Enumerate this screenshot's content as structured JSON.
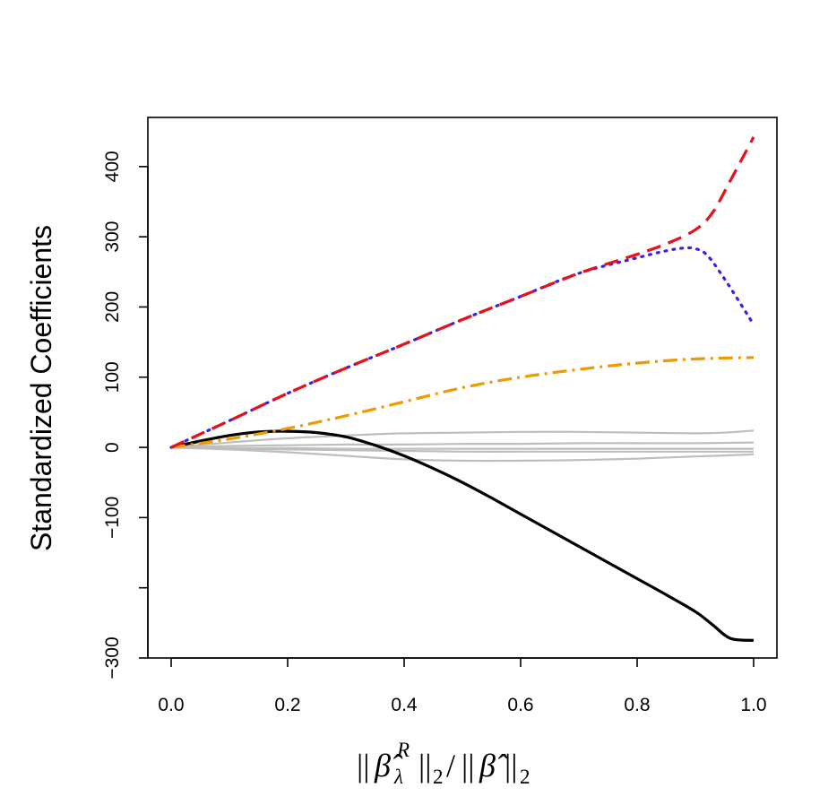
{
  "chart_data": {
    "type": "line",
    "ylabel": "Standardized Coefficients",
    "xlabel": {
      "norm_open": "||",
      "beta_hat": "β̂",
      "superscript": "R",
      "subscript": "λ",
      "norm_close": "||",
      "norm_sub": "2",
      "slash": "/"
    },
    "xlim": [
      -0.04,
      1.04
    ],
    "ylim": [
      -300,
      470
    ],
    "x_ticks": [
      {
        "value": 0.0,
        "label": "0.0"
      },
      {
        "value": 0.2,
        "label": "0.2"
      },
      {
        "value": 0.4,
        "label": "0.4"
      },
      {
        "value": 0.6,
        "label": "0.6"
      },
      {
        "value": 0.8,
        "label": "0.8"
      },
      {
        "value": 1.0,
        "label": "1.0"
      }
    ],
    "y_ticks": [
      {
        "value": -300,
        "label": "−300"
      },
      {
        "value": -200,
        "label": ""
      },
      {
        "value": -100,
        "label": "−100"
      },
      {
        "value": 0,
        "label": "0"
      },
      {
        "value": 100,
        "label": "100"
      },
      {
        "value": 200,
        "label": "200"
      },
      {
        "value": 300,
        "label": "300"
      },
      {
        "value": 400,
        "label": "400"
      }
    ],
    "grid": false,
    "series": [
      {
        "color": "#bebebe",
        "dash": "",
        "width": 2.2,
        "x": [
          0.0,
          0.1,
          0.2,
          0.3,
          0.4,
          0.5,
          0.6,
          0.7,
          0.8,
          0.9,
          0.95,
          1.0
        ],
        "y": [
          0,
          7,
          13,
          17,
          20,
          21,
          22,
          22,
          21,
          20,
          21,
          24
        ]
      },
      {
        "color": "#bebebe",
        "dash": "",
        "width": 2.2,
        "x": [
          0.0,
          0.1,
          0.2,
          0.3,
          0.4,
          0.5,
          0.6,
          0.7,
          0.8,
          0.9,
          1.0
        ],
        "y": [
          0,
          2,
          3,
          4,
          4,
          5,
          5,
          6,
          6,
          6,
          7
        ]
      },
      {
        "color": "#bebebe",
        "dash": "",
        "width": 2.2,
        "x": [
          0.0,
          0.1,
          0.2,
          0.3,
          0.4,
          0.5,
          0.6,
          0.7,
          0.8,
          0.9,
          1.0
        ],
        "y": [
          0,
          -1,
          -1,
          -2,
          -2,
          -2,
          -2,
          -2,
          -2,
          -2,
          -2
        ]
      },
      {
        "color": "#bebebe",
        "dash": "",
        "width": 2.2,
        "x": [
          0.0,
          0.1,
          0.2,
          0.3,
          0.4,
          0.5,
          0.6,
          0.7,
          0.8,
          0.9,
          1.0
        ],
        "y": [
          0,
          -2,
          -3,
          -4,
          -5,
          -6,
          -6,
          -6,
          -6,
          -6,
          -6
        ]
      },
      {
        "color": "#bebebe",
        "dash": "",
        "width": 2.2,
        "x": [
          0.0,
          0.1,
          0.2,
          0.3,
          0.4,
          0.5,
          0.6,
          0.7,
          0.8,
          0.9,
          1.0
        ],
        "y": [
          0,
          -3,
          -7,
          -12,
          -17,
          -19,
          -19,
          -18,
          -16,
          -13,
          -10
        ]
      },
      {
        "color": "#000000",
        "dash": "",
        "width": 3.2,
        "x": [
          0.0,
          0.05,
          0.1,
          0.15,
          0.2,
          0.25,
          0.3,
          0.35,
          0.4,
          0.45,
          0.5,
          0.55,
          0.6,
          0.65,
          0.7,
          0.75,
          0.8,
          0.85,
          0.9,
          0.93,
          0.96,
          1.0
        ],
        "y": [
          0,
          9,
          17,
          22,
          23,
          21,
          15,
          3,
          -12,
          -30,
          -50,
          -72,
          -95,
          -118,
          -141,
          -164,
          -187,
          -210,
          -234,
          -253,
          -272,
          -275
        ]
      },
      {
        "color": "#ee9a00",
        "dash": "16 6 3 6",
        "width": 3.2,
        "x": [
          0.0,
          0.1,
          0.2,
          0.3,
          0.4,
          0.5,
          0.6,
          0.7,
          0.8,
          0.9,
          1.0
        ],
        "y": [
          0,
          12,
          27,
          45,
          65,
          85,
          100,
          111,
          120,
          126,
          128
        ]
      },
      {
        "color": "#3a1eea",
        "dash": "2 7",
        "width": 3.2,
        "x": [
          0.0,
          0.1,
          0.2,
          0.3,
          0.4,
          0.5,
          0.6,
          0.7,
          0.8,
          0.85,
          0.88,
          0.9,
          0.92,
          0.95,
          1.0
        ],
        "y": [
          0,
          38,
          77,
          113,
          147,
          182,
          215,
          248,
          270,
          280,
          284,
          283,
          274,
          240,
          175
        ]
      },
      {
        "color": "#e8101a",
        "dash": "16 9",
        "width": 3.2,
        "x": [
          0.0,
          0.1,
          0.2,
          0.3,
          0.4,
          0.5,
          0.6,
          0.7,
          0.8,
          0.85,
          0.9,
          0.93,
          0.96,
          1.0
        ],
        "y": [
          0,
          38,
          77,
          113,
          147,
          182,
          215,
          248,
          275,
          290,
          310,
          335,
          380,
          442
        ]
      }
    ]
  }
}
